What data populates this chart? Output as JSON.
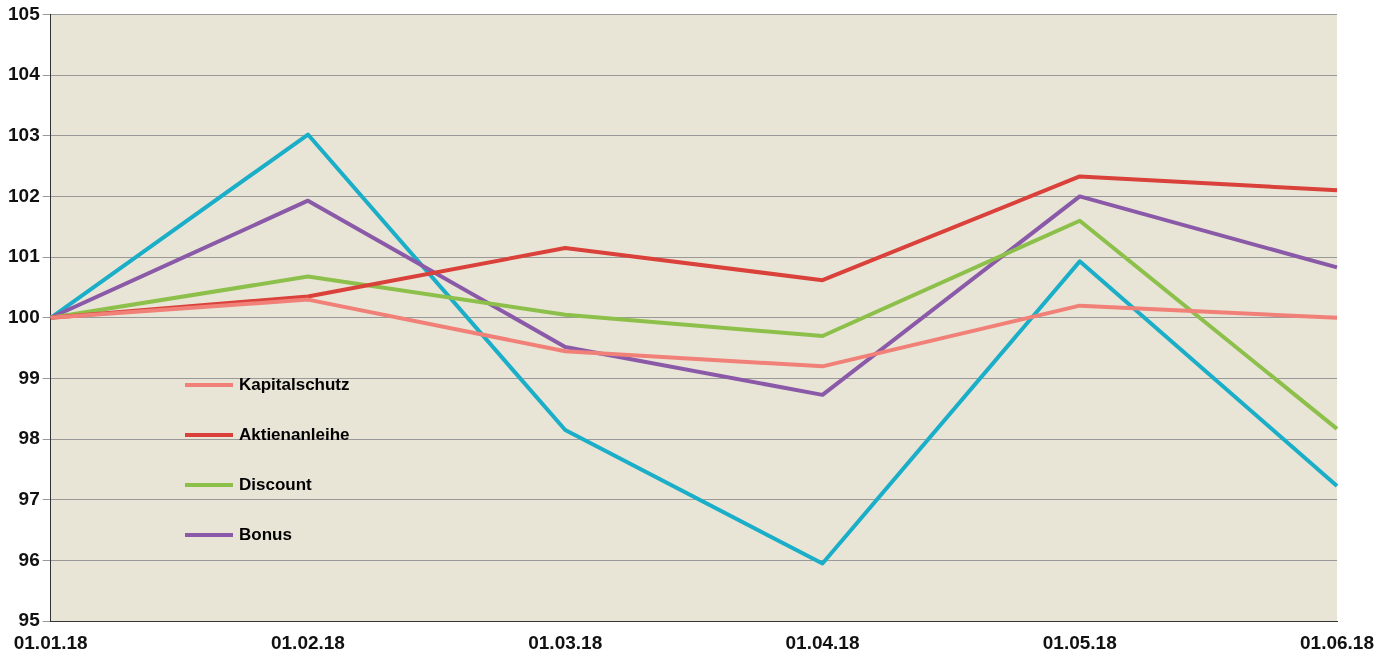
{
  "chart_data": {
    "type": "line",
    "categories": [
      "01.01.18",
      "01.02.18",
      "01.03.18",
      "01.04.18",
      "01.05.18",
      "01.06.18"
    ],
    "series": [
      {
        "name": "Kapitalschutz",
        "color": "#f08078",
        "values": [
          100,
          100.3,
          99.45,
          99.2,
          100.2,
          100
        ]
      },
      {
        "name": "Aktienanleihe",
        "color": "#d9413a",
        "values": [
          100,
          100.35,
          101.15,
          100.62,
          102.33,
          102.1
        ]
      },
      {
        "name": "Discount",
        "color": "#8cc04a",
        "values": [
          100,
          100.68,
          100.05,
          99.7,
          101.6,
          98.17
        ]
      },
      {
        "name": "Bonus",
        "color": "#8a5aa8",
        "values": [
          100,
          101.93,
          99.52,
          98.73,
          102.0,
          100.83
        ]
      },
      {
        "color": "#1aaec8",
        "values": [
          100,
          103.02,
          98.15,
          95.95,
          100.93,
          97.23
        ]
      }
    ],
    "ylim": [
      95,
      105
    ],
    "yticks": [
      95,
      96,
      97,
      98,
      99,
      100,
      101,
      102,
      103,
      104,
      105
    ],
    "grid": "y",
    "legend": "left",
    "marker": "none",
    "line_style": "solid"
  }
}
